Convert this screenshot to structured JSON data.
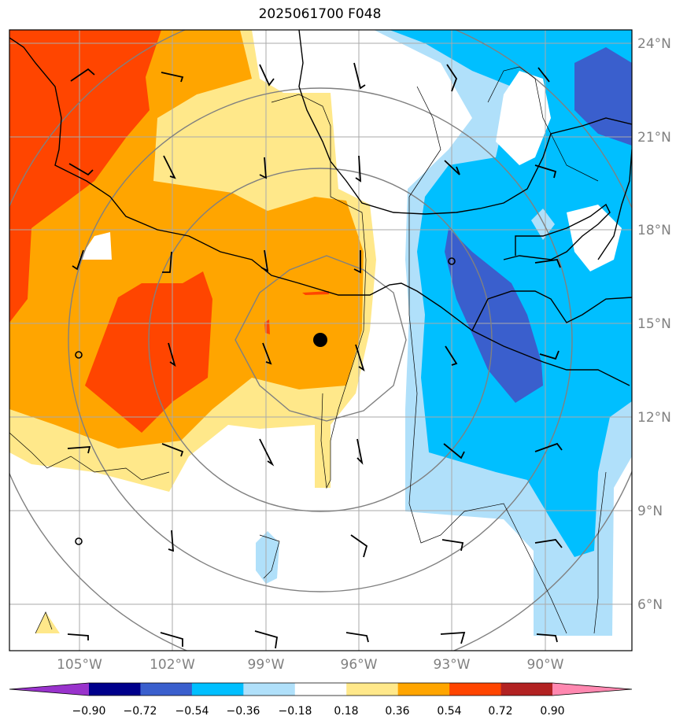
{
  "title": "2025061700 F048",
  "lat_labels": [
    "24°N",
    "21°N",
    "18°N",
    "15°N",
    "12°N",
    "9°N",
    "6°N"
  ],
  "lon_labels": [
    "105°W",
    "102°W",
    "99°W",
    "96°W",
    "93°W",
    "90°W"
  ],
  "colorbar": {
    "ticks": [
      "−0.90",
      "−0.72",
      "−0.54",
      "−0.36",
      "−0.18",
      "0.18",
      "0.36",
      "0.54",
      "0.72",
      "0.90"
    ],
    "colors": [
      "#9933cc",
      "#00008b",
      "#3a5fcd",
      "#00bfff",
      "#b0e0fa",
      "#ffffff",
      "#ffe88a",
      "#ffa500",
      "#ff4500",
      "#b22222",
      "#ff88b0"
    ]
  },
  "palette": {
    "neg_light": "#b0e0fa",
    "neg_mid": "#00bfff",
    "neg_dark": "#3a5fcd",
    "pos_light": "#ffe88a",
    "pos_mid": "#ffa500",
    "pos_dark": "#ff4500"
  }
}
